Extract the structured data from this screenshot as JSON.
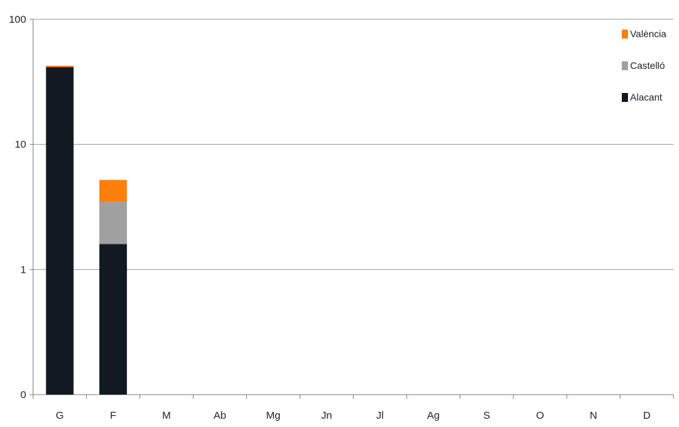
{
  "chart_data": {
    "type": "bar",
    "stacked": true,
    "y_scale": "log",
    "categories": [
      "G",
      "F",
      "M",
      "Ab",
      "Mg",
      "Jn",
      "Jl",
      "Ag",
      "S",
      "O",
      "N",
      "D"
    ],
    "series": [
      {
        "name": "Alacant",
        "color": "#111a22",
        "values": [
          41.5,
          1.6,
          0,
          0,
          0,
          0,
          0,
          0,
          0,
          0,
          0,
          0
        ]
      },
      {
        "name": "Castelló",
        "color": "#a0a0a0",
        "values": [
          0,
          1.9,
          0,
          0,
          0,
          0,
          0,
          0,
          0,
          0,
          0,
          0
        ]
      },
      {
        "name": "València",
        "color": "#ff7f0e",
        "values": [
          1.0,
          1.7,
          0,
          0,
          0,
          0,
          0,
          0,
          0,
          0,
          0,
          0
        ]
      }
    ],
    "yticks": [
      {
        "value": 100,
        "label": "100"
      },
      {
        "value": 10,
        "label": "10"
      },
      {
        "value": 1,
        "label": "1"
      },
      {
        "value": 0.1,
        "label": "0"
      }
    ],
    "ylim": [
      0.1,
      100
    ],
    "grid": true,
    "legend_position": "top-right",
    "legend_order": [
      "València",
      "Castelló",
      "Alacant"
    ],
    "title": "",
    "xlabel": "",
    "ylabel": ""
  }
}
